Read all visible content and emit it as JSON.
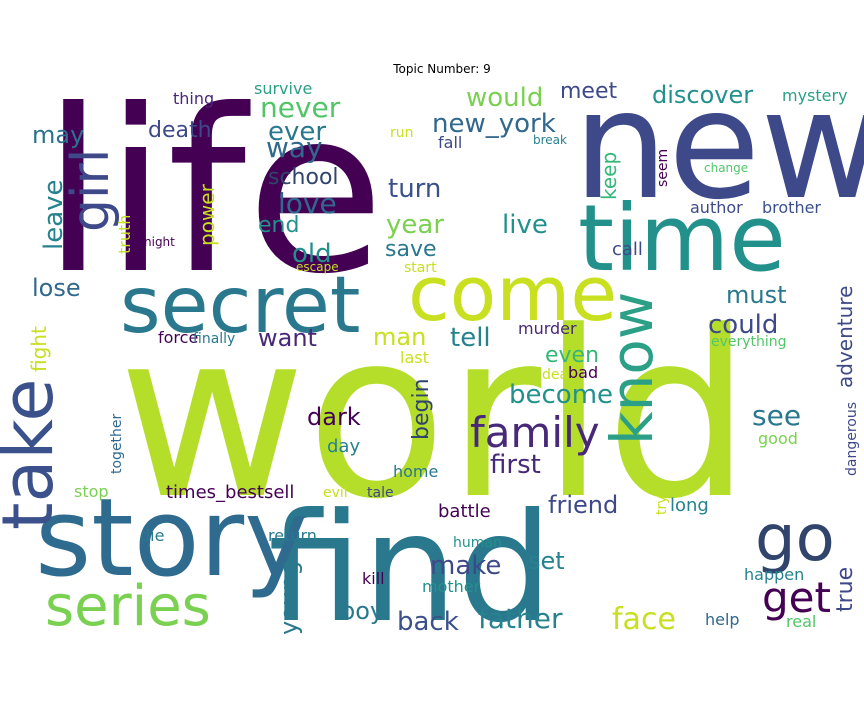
{
  "title": "Topic Number: 9",
  "palette": {
    "p1": "#440154",
    "p2": "#482878",
    "p3": "#3e4989",
    "p4": "#31688e",
    "p5": "#26828e",
    "p6": "#1f9e89",
    "p7": "#35b779",
    "p8": "#6ece58",
    "p9": "#b5de2b",
    "p10": "#c8e020"
  },
  "words": [
    {
      "text": "life",
      "color": "#440154"
    },
    {
      "text": "world",
      "color": "#b5de2b"
    },
    {
      "text": "new",
      "color": "#3e4989"
    },
    {
      "text": "find",
      "color": "#2a788e"
    },
    {
      "text": "story",
      "color": "#2f6b8e"
    },
    {
      "text": "time",
      "color": "#22918c"
    },
    {
      "text": "secret",
      "color": "#2a788e"
    },
    {
      "text": "come",
      "color": "#c8e020"
    },
    {
      "text": "take",
      "color": "#3b518b"
    },
    {
      "text": "series",
      "color": "#7ad151"
    },
    {
      "text": "girl",
      "color": "#3e4989"
    },
    {
      "text": "know",
      "color": "#2c9f87"
    },
    {
      "text": "go",
      "color": "#31446b"
    },
    {
      "text": "family",
      "color": "#482878"
    },
    {
      "text": "get",
      "color": "#440154"
    },
    {
      "text": "never",
      "color": "#52c569"
    },
    {
      "text": "ever",
      "color": "#2a788e"
    },
    {
      "text": "way",
      "color": "#31688e"
    },
    {
      "text": "death",
      "color": "#3e4989"
    },
    {
      "text": "may",
      "color": "#2c728e"
    },
    {
      "text": "thing",
      "color": "#482878"
    },
    {
      "text": "survive",
      "color": "#2c9f87"
    },
    {
      "text": "would",
      "color": "#7ad151"
    },
    {
      "text": "meet",
      "color": "#3e4989"
    },
    {
      "text": "discover",
      "color": "#22918c"
    },
    {
      "text": "mystery",
      "color": "#2c9f87"
    },
    {
      "text": "new_york",
      "color": "#31688e"
    },
    {
      "text": "run",
      "color": "#c8e020"
    },
    {
      "text": "break",
      "color": "#26828e"
    },
    {
      "text": "fall",
      "color": "#3e4989"
    },
    {
      "text": "seem",
      "color": "#440154"
    },
    {
      "text": "change",
      "color": "#52c569"
    },
    {
      "text": "school",
      "color": "#31446b"
    },
    {
      "text": "turn",
      "color": "#3b518b"
    },
    {
      "text": "keep",
      "color": "#35b779"
    },
    {
      "text": "love",
      "color": "#31688e"
    },
    {
      "text": "leave",
      "color": "#26828e"
    },
    {
      "text": "end",
      "color": "#22918c"
    },
    {
      "text": "year",
      "color": "#7ad151"
    },
    {
      "text": "live",
      "color": "#22918c"
    },
    {
      "text": "author",
      "color": "#3e4989"
    },
    {
      "text": "brother",
      "color": "#3b518b"
    },
    {
      "text": "power",
      "color": "#c8e020"
    },
    {
      "text": "truth",
      "color": "#c8e020"
    },
    {
      "text": "night",
      "color": "#440154"
    },
    {
      "text": "old",
      "color": "#22918c"
    },
    {
      "text": "save",
      "color": "#2a788e"
    },
    {
      "text": "call",
      "color": "#3e4989"
    },
    {
      "text": "escape",
      "color": "#c8e020"
    },
    {
      "text": "start",
      "color": "#c8e020"
    },
    {
      "text": "adventure",
      "color": "#3e4989"
    },
    {
      "text": "lose",
      "color": "#31688e"
    },
    {
      "text": "must",
      "color": "#2a788e"
    },
    {
      "text": "could",
      "color": "#3e4989"
    },
    {
      "text": "force",
      "color": "#440154"
    },
    {
      "text": "finally",
      "color": "#2a788e"
    },
    {
      "text": "want",
      "color": "#482878"
    },
    {
      "text": "man",
      "color": "#c8e020"
    },
    {
      "text": "tell",
      "color": "#26828e"
    },
    {
      "text": "murder",
      "color": "#482878"
    },
    {
      "text": "everything",
      "color": "#52c569"
    },
    {
      "text": "fight",
      "color": "#c8e020"
    },
    {
      "text": "last",
      "color": "#c8e020"
    },
    {
      "text": "even",
      "color": "#35b779"
    },
    {
      "text": "dead",
      "color": "#c8e020"
    },
    {
      "text": "bad",
      "color": "#440154"
    },
    {
      "text": "become",
      "color": "#22918c"
    },
    {
      "text": "begin",
      "color": "#31446b"
    },
    {
      "text": "dark",
      "color": "#440154"
    },
    {
      "text": "see",
      "color": "#2a788e"
    },
    {
      "text": "dangerous",
      "color": "#3e4989"
    },
    {
      "text": "together",
      "color": "#31688e"
    },
    {
      "text": "day",
      "color": "#26828e"
    },
    {
      "text": "good",
      "color": "#7ad151"
    },
    {
      "text": "first",
      "color": "#482878"
    },
    {
      "text": "home",
      "color": "#2a788e"
    },
    {
      "text": "stop",
      "color": "#7ad151"
    },
    {
      "text": "times_bestsell",
      "color": "#440154"
    },
    {
      "text": "evil",
      "color": "#c8e020"
    },
    {
      "text": "tale",
      "color": "#3e4989"
    },
    {
      "text": "friend",
      "color": "#3e4989"
    },
    {
      "text": "try",
      "color": "#c8e020"
    },
    {
      "text": "long",
      "color": "#26828e"
    },
    {
      "text": "battle",
      "color": "#440154"
    },
    {
      "text": "die",
      "color": "#2a788e"
    },
    {
      "text": "return",
      "color": "#2a788e"
    },
    {
      "text": "human",
      "color": "#22918c"
    },
    {
      "text": "make",
      "color": "#3e4989"
    },
    {
      "text": "set",
      "color": "#26828e"
    },
    {
      "text": "young",
      "color": "#2a788e"
    },
    {
      "text": "kill",
      "color": "#440154"
    },
    {
      "text": "mother",
      "color": "#22918c"
    },
    {
      "text": "happen",
      "color": "#26828e"
    },
    {
      "text": "true",
      "color": "#3e4989"
    },
    {
      "text": "boy",
      "color": "#2a788e"
    },
    {
      "text": "back",
      "color": "#3b518b"
    },
    {
      "text": "father",
      "color": "#26828e"
    },
    {
      "text": "face",
      "color": "#c8e020"
    },
    {
      "text": "help",
      "color": "#31688e"
    },
    {
      "text": "real",
      "color": "#52c569"
    }
  ]
}
